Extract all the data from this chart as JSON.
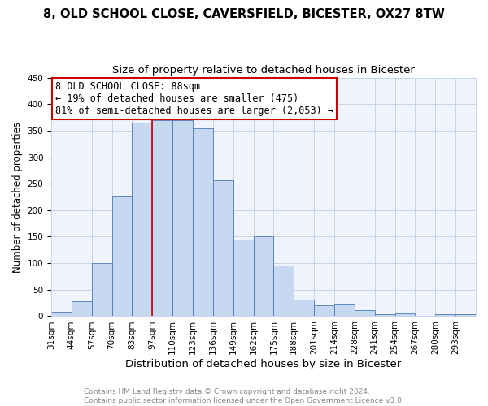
{
  "title1": "8, OLD SCHOOL CLOSE, CAVERSFIELD, BICESTER, OX27 8TW",
  "title2": "Size of property relative to detached houses in Bicester",
  "xlabel": "Distribution of detached houses by size in Bicester",
  "ylabel": "Number of detached properties",
  "categories": [
    "31sqm",
    "44sqm",
    "57sqm",
    "70sqm",
    "83sqm",
    "97sqm",
    "110sqm",
    "123sqm",
    "136sqm",
    "149sqm",
    "162sqm",
    "175sqm",
    "188sqm",
    "201sqm",
    "214sqm",
    "228sqm",
    "241sqm",
    "254sqm",
    "267sqm",
    "280sqm",
    "293sqm"
  ],
  "values": [
    9,
    28,
    100,
    228,
    365,
    369,
    370,
    354,
    256,
    145,
    151,
    95,
    32,
    20,
    22,
    11,
    4,
    6,
    0,
    4,
    4
  ],
  "bar_color": "#c6d9f1",
  "bar_edge_color": "#4e7ab5",
  "grid_color": "#c8d4e8",
  "annotation_line1": "8 OLD SCHOOL CLOSE: 88sqm",
  "annotation_line2": "← 19% of detached houses are smaller (475)",
  "annotation_line3": "81% of semi-detached houses are larger (2,053) →",
  "annotation_box_facecolor": "#ffffff",
  "annotation_box_edgecolor": "#cc0000",
  "vline_color": "#cc0000",
  "vline_x_index": 4,
  "ylim": [
    0,
    450
  ],
  "yticks": [
    0,
    50,
    100,
    150,
    200,
    250,
    300,
    350,
    400,
    450
  ],
  "title1_fontsize": 10.5,
  "title2_fontsize": 9.5,
  "xlabel_fontsize": 9.5,
  "ylabel_fontsize": 8.5,
  "tick_fontsize": 7.5,
  "annotation_fontsize": 8.5,
  "footer1": "Contains HM Land Registry data © Crown copyright and database right 2024.",
  "footer2": "Contains public sector information licensed under the Open Government Licence v3.0.",
  "footer_fontsize": 6.5,
  "footer_color": "#888888"
}
